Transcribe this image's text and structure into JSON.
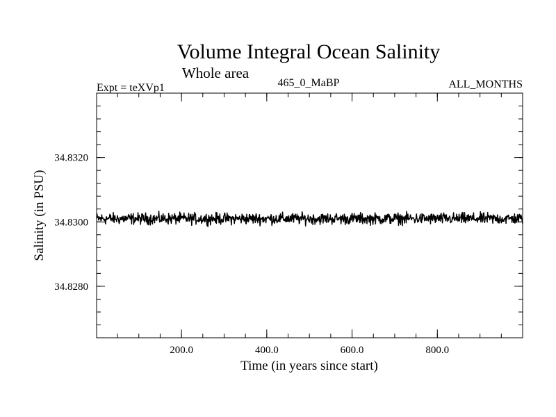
{
  "chart_data": {
    "type": "line",
    "title": "Volume Integral Ocean Salinity",
    "subtitle": "Whole area",
    "header_left": "Expt = teXVp1",
    "header_center": "465_0_MaBP",
    "header_right": "ALL_MONTHS",
    "xlabel": "Time (in years since start)",
    "ylabel": "Salinity (in PSU)",
    "xlim": [
      1,
      1000
    ],
    "ylim": [
      34.8264,
      34.834
    ],
    "xticks": [
      {
        "value": 200,
        "label": "200.0"
      },
      {
        "value": 400,
        "label": "400.0"
      },
      {
        "value": 600,
        "label": "600.0"
      },
      {
        "value": 800,
        "label": "800.0"
      }
    ],
    "yticks": [
      {
        "value": 34.828,
        "label": "34.8280"
      },
      {
        "value": 34.83,
        "label": "34.8300"
      },
      {
        "value": 34.832,
        "label": "34.8320"
      }
    ],
    "x_minor_step": 50,
    "y_minor_step": 0.0004,
    "series": [
      {
        "name": "Salinity",
        "color": "#000000",
        "x_start": 1,
        "x_step": 1,
        "n_points": 1000,
        "mean": 34.8301,
        "amplitude": 0.00026,
        "note": "annual-mean values fluctuating around 34.8301 PSU with amplitude about 0.0002-0.0003 PSU, no trend"
      }
    ]
  }
}
